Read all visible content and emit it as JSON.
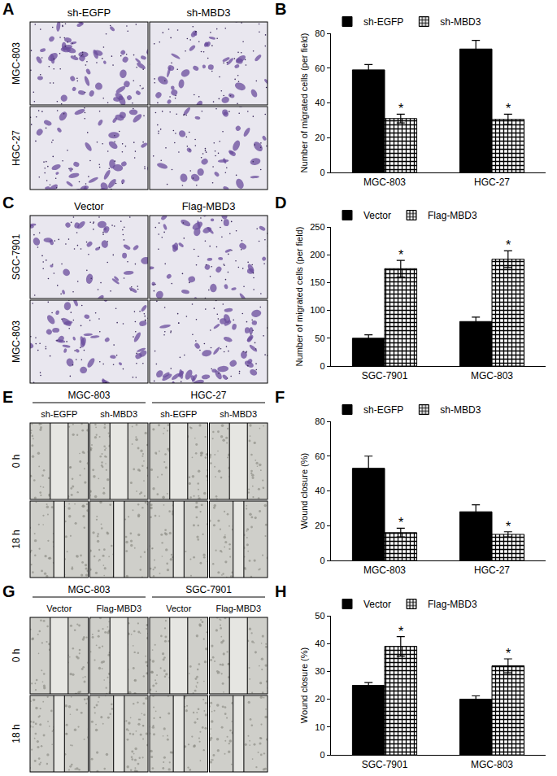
{
  "chart_data": [
    {
      "panel": "B",
      "type": "bar",
      "y_label": "Number of migrated cells (per field)",
      "categories": [
        "MGC-803",
        "HGC-27"
      ],
      "series": [
        {
          "name": "sh-EGFP",
          "color": "#000000",
          "values": [
            59,
            71
          ],
          "error": [
            3,
            5
          ]
        },
        {
          "name": "sh-MBD3",
          "color": "#000000",
          "marker": "checkered",
          "values": [
            31,
            30.5
          ],
          "error": [
            2.5,
            3
          ],
          "annotations": [
            "*",
            "*"
          ]
        }
      ],
      "ylim": [
        0,
        80
      ],
      "yticks": [
        0,
        20,
        40,
        60,
        80
      ],
      "legend": "top left"
    },
    {
      "panel": "D",
      "type": "bar",
      "y_label": "Number of migrated cells (per field)",
      "categories": [
        "SGC-7901",
        "MGC-803"
      ],
      "series": [
        {
          "name": "Vector",
          "color": "#000000",
          "values": [
            50,
            80
          ],
          "error": [
            6,
            8
          ]
        },
        {
          "name": "Flag-MBD3",
          "color": "#000000",
          "marker": "checkered",
          "values": [
            175,
            192
          ],
          "error": [
            15,
            15
          ],
          "annotations": [
            "*",
            "*"
          ]
        }
      ],
      "ylim": [
        0,
        250
      ],
      "yticks": [
        0,
        50,
        100,
        150,
        200,
        250
      ],
      "legend": "top left"
    },
    {
      "panel": "F",
      "type": "bar",
      "y_label": "Wound closure (%)",
      "categories": [
        "MGC-803",
        "HGC-27"
      ],
      "series": [
        {
          "name": "sh-EGFP",
          "color": "#000000",
          "values": [
            53,
            28
          ],
          "error": [
            7,
            4
          ]
        },
        {
          "name": "sh-MBD3",
          "color": "#000000",
          "marker": "checkered",
          "values": [
            16,
            15
          ],
          "error": [
            2.5,
            1.5
          ],
          "annotations": [
            "*",
            "*"
          ]
        }
      ],
      "ylim": [
        0,
        80
      ],
      "yticks": [
        0,
        20,
        40,
        60,
        80
      ],
      "legend": "top left"
    },
    {
      "panel": "H",
      "type": "bar",
      "y_label": "Wound closure (%)",
      "categories": [
        "SGC-7901",
        "MGC-803"
      ],
      "series": [
        {
          "name": "Vector",
          "color": "#000000",
          "values": [
            25,
            20
          ],
          "error": [
            1,
            1.2
          ]
        },
        {
          "name": "Flag-MBD3",
          "color": "#000000",
          "marker": "checkered",
          "values": [
            39,
            32
          ],
          "error": [
            3.5,
            2.5
          ],
          "annotations": [
            "*",
            "*"
          ]
        }
      ],
      "ylim": [
        0,
        50
      ],
      "yticks": [
        0,
        10,
        20,
        30,
        40,
        50
      ],
      "legend": "top left"
    }
  ],
  "image_panels": [
    {
      "panel": "A",
      "columns": [
        "sh-EGFP",
        "sh-MBD3"
      ],
      "rows": [
        "MGC-803",
        "HGC-27"
      ]
    },
    {
      "panel": "C",
      "columns": [
        "Vector",
        "Flag-MBD3"
      ],
      "rows": [
        "SGC-7901",
        "MGC-803"
      ]
    },
    {
      "panel": "E",
      "groups": [
        {
          "name": "MGC-803",
          "columns": [
            "sh-EGFP",
            "sh-MBD3"
          ]
        },
        {
          "name": "HGC-27",
          "columns": [
            "sh-EGFP",
            "sh-MBD3"
          ]
        }
      ],
      "rows": [
        "0 h",
        "18 h"
      ]
    },
    {
      "panel": "G",
      "groups": [
        {
          "name": "MGC-803",
          "columns": [
            "Vector",
            "Flag-MBD3"
          ]
        },
        {
          "name": "SGC-7901",
          "columns": [
            "Vector",
            "Flag-MBD3"
          ]
        }
      ],
      "rows": [
        "0 h",
        "18 h"
      ]
    }
  ]
}
